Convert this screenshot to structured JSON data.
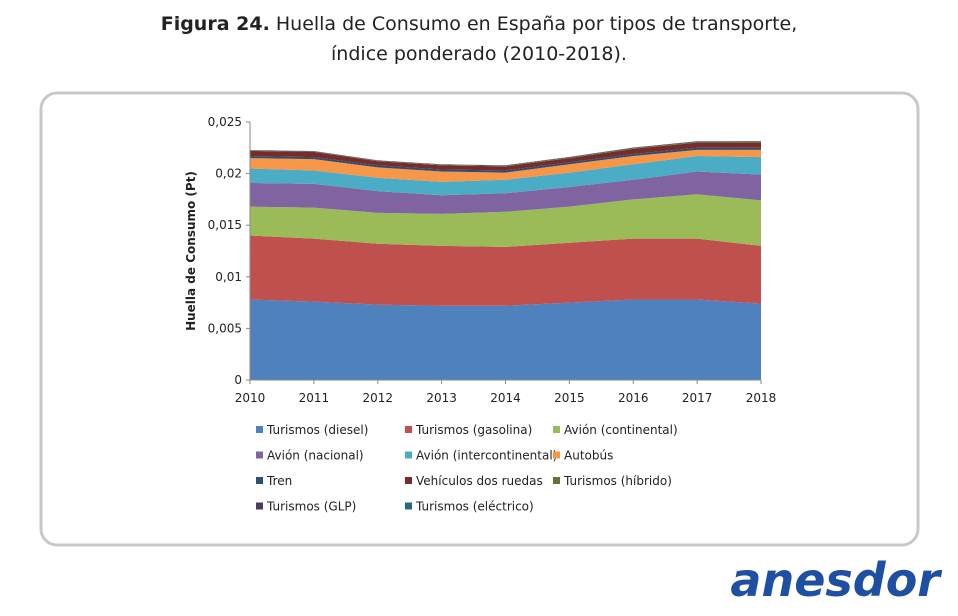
{
  "chart_data": {
    "type": "stacked_area",
    "title_label": "Figura 24.",
    "title": "Huella de Consumo en España por tipos de transporte,",
    "title_line2": "índice ponderado (2010-2018).",
    "y_label": "Huella de Consumo (Pt)",
    "categories": [
      "2010",
      "2011",
      "2012",
      "2013",
      "2014",
      "2015",
      "2016",
      "2017",
      "2018"
    ],
    "ylim": [
      0,
      0.025
    ],
    "yticks": [
      0,
      {
        "value": 0.005,
        "label": "0,005"
      },
      {
        "value": 0.01,
        "label": "0,01"
      },
      {
        "value": 0.015,
        "label": "0,015"
      },
      {
        "value": 0.02,
        "label": "0,02"
      },
      {
        "value": 0.025,
        "label": "0,025"
      }
    ],
    "series": [
      {
        "name": "Turismos (diesel)",
        "color": "#4f81bd",
        "values": [
          0.0078,
          0.0076,
          0.0073,
          0.0072,
          0.0072,
          0.0075,
          0.0078,
          0.0078,
          0.0074
        ]
      },
      {
        "name": "Turismos (gasolina)",
        "color": "#c0504d",
        "values": [
          0.0062,
          0.0061,
          0.0059,
          0.0058,
          0.0057,
          0.0058,
          0.0059,
          0.0059,
          0.0056
        ]
      },
      {
        "name": "Avión (continental)",
        "color": "#9bbb59",
        "values": [
          0.0028,
          0.003,
          0.003,
          0.0031,
          0.0034,
          0.0035,
          0.0038,
          0.0043,
          0.0044
        ]
      },
      {
        "name": "Avión (nacional)",
        "color": "#8064a2",
        "values": [
          0.0023,
          0.0023,
          0.0021,
          0.0018,
          0.0018,
          0.0019,
          0.0019,
          0.0022,
          0.0025
        ]
      },
      {
        "name": "Avión (intercontinental)",
        "color": "#4bacc6",
        "values": [
          0.0014,
          0.0013,
          0.0013,
          0.0013,
          0.0013,
          0.0014,
          0.0015,
          0.0015,
          0.0017
        ]
      },
      {
        "name": "Autobús",
        "color": "#f79646",
        "values": [
          0.001,
          0.0011,
          0.001,
          0.001,
          0.0007,
          0.0008,
          0.0008,
          0.0006,
          0.0007
        ]
      },
      {
        "name": "Tren",
        "color": "#2c4d75",
        "values": [
          0.0002,
          0.0002,
          0.0002,
          0.0002,
          0.0002,
          0.0002,
          0.0002,
          0.0002,
          0.0002
        ]
      },
      {
        "name": "Vehículos dos ruedas",
        "color": "#772c2a",
        "values": [
          0.0005,
          0.0005,
          0.0004,
          0.0004,
          0.0004,
          0.0004,
          0.0005,
          0.0005,
          0.0005
        ]
      },
      {
        "name": "Turismos (híbrido)",
        "color": "#5f7530",
        "values": [
          2e-05,
          3e-05,
          3e-05,
          4e-05,
          5e-05,
          6e-05,
          7e-05,
          8e-05,
          0.0001
        ]
      },
      {
        "name": "Turismos (GLP)",
        "color": "#4d3b62",
        "values": [
          5e-05,
          5e-05,
          5e-05,
          5e-05,
          5e-05,
          5e-05,
          5e-05,
          5e-05,
          5e-05
        ]
      },
      {
        "name": "Turismos (eléctrico)",
        "color": "#276a7c",
        "values": [
          1e-05,
          1e-05,
          1e-05,
          1e-05,
          1e-05,
          1e-05,
          1e-05,
          1e-05,
          1e-05
        ]
      }
    ]
  },
  "logo": "anesdor"
}
